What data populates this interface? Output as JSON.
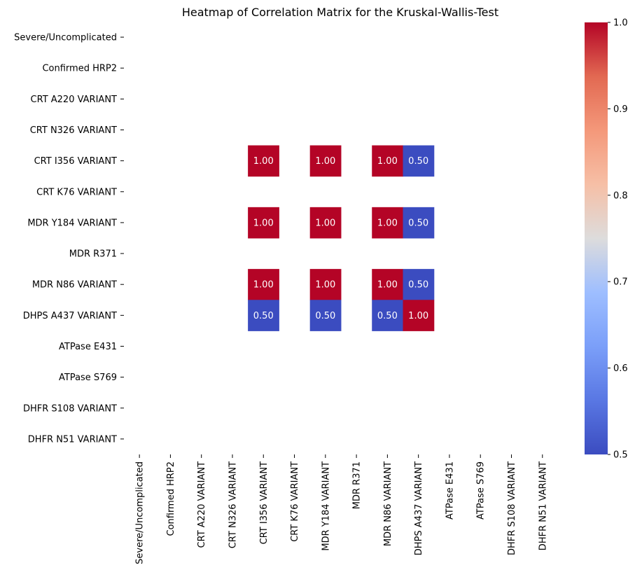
{
  "chart_data": {
    "type": "heatmap",
    "title": "Heatmap of Correlation Matrix for the Kruskal-Wallis-Test",
    "row_labels": [
      "Severe/Uncomplicated",
      "Confirmed HRP2",
      "CRT A220 VARIANT",
      "CRT N326 VARIANT",
      "CRT I356 VARIANT",
      "CRT K76 VARIANT",
      "MDR Y184 VARIANT",
      "MDR R371",
      "MDR N86 VARIANT",
      "DHPS A437 VARIANT",
      "ATPase E431",
      "ATPase S769",
      "DHFR S108 VARIANT",
      "DHFR N51 VARIANT"
    ],
    "col_labels": [
      "Severe/Uncomplicated",
      "Confirmed HRP2",
      "CRT A220 VARIANT",
      "CRT N326 VARIANT",
      "CRT I356 VARIANT",
      "CRT K76 VARIANT",
      "MDR Y184 VARIANT",
      "MDR R371",
      "MDR N86 VARIANT",
      "DHPS A437 VARIANT",
      "ATPase E431",
      "ATPase S769",
      "DHFR S108 VARIANT",
      "DHFR N51 VARIANT"
    ],
    "values": [
      [
        null,
        null,
        null,
        null,
        null,
        null,
        null,
        null,
        null,
        null,
        null,
        null,
        null,
        null
      ],
      [
        null,
        null,
        null,
        null,
        null,
        null,
        null,
        null,
        null,
        null,
        null,
        null,
        null,
        null
      ],
      [
        null,
        null,
        null,
        null,
        null,
        null,
        null,
        null,
        null,
        null,
        null,
        null,
        null,
        null
      ],
      [
        null,
        null,
        null,
        null,
        null,
        null,
        null,
        null,
        null,
        null,
        null,
        null,
        null,
        null
      ],
      [
        null,
        null,
        null,
        null,
        1.0,
        null,
        1.0,
        null,
        1.0,
        0.5,
        null,
        null,
        null,
        null
      ],
      [
        null,
        null,
        null,
        null,
        null,
        null,
        null,
        null,
        null,
        null,
        null,
        null,
        null,
        null
      ],
      [
        null,
        null,
        null,
        null,
        1.0,
        null,
        1.0,
        null,
        1.0,
        0.5,
        null,
        null,
        null,
        null
      ],
      [
        null,
        null,
        null,
        null,
        null,
        null,
        null,
        null,
        null,
        null,
        null,
        null,
        null,
        null
      ],
      [
        null,
        null,
        null,
        null,
        1.0,
        null,
        1.0,
        null,
        1.0,
        0.5,
        null,
        null,
        null,
        null
      ],
      [
        null,
        null,
        null,
        null,
        0.5,
        null,
        0.5,
        null,
        0.5,
        1.0,
        null,
        null,
        null,
        null
      ],
      [
        null,
        null,
        null,
        null,
        null,
        null,
        null,
        null,
        null,
        null,
        null,
        null,
        null,
        null
      ],
      [
        null,
        null,
        null,
        null,
        null,
        null,
        null,
        null,
        null,
        null,
        null,
        null,
        null,
        null
      ],
      [
        null,
        null,
        null,
        null,
        null,
        null,
        null,
        null,
        null,
        null,
        null,
        null,
        null,
        null
      ],
      [
        null,
        null,
        null,
        null,
        null,
        null,
        null,
        null,
        null,
        null,
        null,
        null,
        null,
        null
      ]
    ],
    "value_format": "0.00",
    "colormap": "coolwarm",
    "color_low": "#3b4cc0",
    "color_high": "#b40426",
    "vmin": 0.5,
    "vmax": 1.0,
    "colorbar_ticks": [
      "0.5",
      "0.6",
      "0.7",
      "0.8",
      "0.9",
      "1.0"
    ],
    "grid": false
  }
}
